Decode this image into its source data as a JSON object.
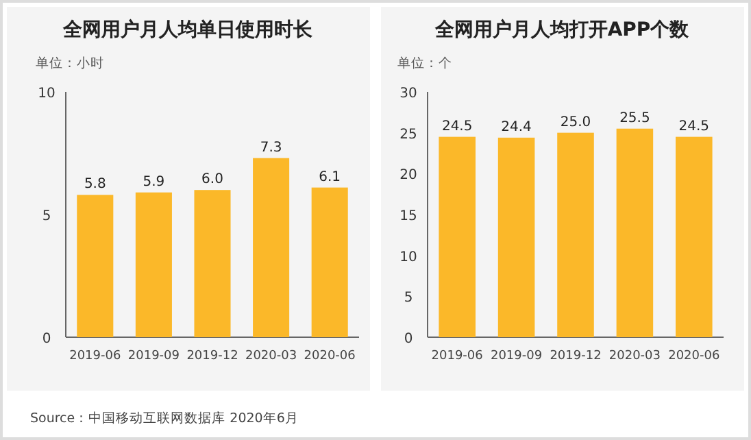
{
  "chart_data": [
    {
      "type": "bar",
      "title": "全网用户月人均单日使用时长",
      "ylabel": "单位：小时",
      "categories": [
        "2019-06",
        "2019-09",
        "2019-12",
        "2020-03",
        "2020-06"
      ],
      "values": [
        5.8,
        5.9,
        6.0,
        7.3,
        6.1
      ],
      "value_labels": [
        "5.8",
        "5.9",
        "6.0",
        "7.3",
        "6.1"
      ],
      "color": "#fbb829",
      "ylim": [
        0,
        10
      ],
      "yticks": [
        0,
        5,
        10
      ],
      "annotations": [
        "Source：中国移动互联网数据库 2020年6月"
      ]
    },
    {
      "type": "bar",
      "title": "全网用户月人均打开APP个数",
      "ylabel": "单位：个",
      "categories": [
        "2019-06",
        "2019-09",
        "2019-12",
        "2020-03",
        "2020-06"
      ],
      "values": [
        24.5,
        24.4,
        25.0,
        25.5,
        24.5
      ],
      "value_labels": [
        "24.5",
        "24.4",
        "25.0",
        "25.5",
        "24.5"
      ],
      "color": "#fbb829",
      "ylim": [
        0,
        30
      ],
      "yticks": [
        0,
        5,
        10,
        15,
        20,
        25,
        30
      ]
    }
  ]
}
